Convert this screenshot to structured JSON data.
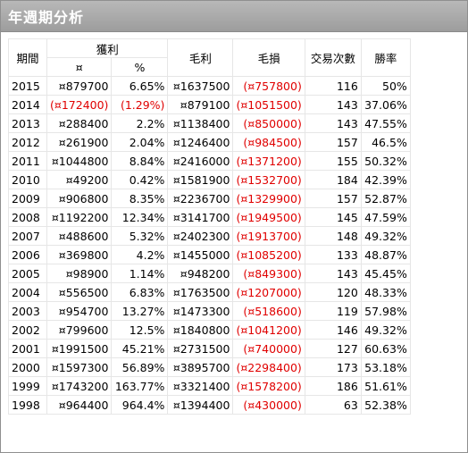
{
  "window": {
    "title": "年週期分析"
  },
  "table": {
    "headers": {
      "period": "期間",
      "profit_group": "獲利",
      "profit_amount": "¤",
      "profit_pct": "%",
      "gross_profit": "毛利",
      "gross_loss": "毛損",
      "trades": "交易次數",
      "win_rate": "勝率"
    },
    "rows": [
      {
        "year": "2015",
        "profit": "¤879700",
        "pct": "6.65%",
        "gross": "¤1637500",
        "loss": "(¤757800)",
        "trades": "116",
        "win": "50%",
        "negative": false
      },
      {
        "year": "2014",
        "profit": "(¤172400)",
        "pct": "(1.29%)",
        "gross": "¤879100",
        "loss": "(¤1051500)",
        "trades": "143",
        "win": "37.06%",
        "negative": true
      },
      {
        "year": "2013",
        "profit": "¤288400",
        "pct": "2.2%",
        "gross": "¤1138400",
        "loss": "(¤850000)",
        "trades": "143",
        "win": "47.55%",
        "negative": false
      },
      {
        "year": "2012",
        "profit": "¤261900",
        "pct": "2.04%",
        "gross": "¤1246400",
        "loss": "(¤984500)",
        "trades": "157",
        "win": "46.5%",
        "negative": false
      },
      {
        "year": "2011",
        "profit": "¤1044800",
        "pct": "8.84%",
        "gross": "¤2416000",
        "loss": "(¤1371200)",
        "trades": "155",
        "win": "50.32%",
        "negative": false
      },
      {
        "year": "2010",
        "profit": "¤49200",
        "pct": "0.42%",
        "gross": "¤1581900",
        "loss": "(¤1532700)",
        "trades": "184",
        "win": "42.39%",
        "negative": false
      },
      {
        "year": "2009",
        "profit": "¤906800",
        "pct": "8.35%",
        "gross": "¤2236700",
        "loss": "(¤1329900)",
        "trades": "157",
        "win": "52.87%",
        "negative": false
      },
      {
        "year": "2008",
        "profit": "¤1192200",
        "pct": "12.34%",
        "gross": "¤3141700",
        "loss": "(¤1949500)",
        "trades": "145",
        "win": "47.59%",
        "negative": false
      },
      {
        "year": "2007",
        "profit": "¤488600",
        "pct": "5.32%",
        "gross": "¤2402300",
        "loss": "(¤1913700)",
        "trades": "148",
        "win": "49.32%",
        "negative": false
      },
      {
        "year": "2006",
        "profit": "¤369800",
        "pct": "4.2%",
        "gross": "¤1455000",
        "loss": "(¤1085200)",
        "trades": "133",
        "win": "48.87%",
        "negative": false
      },
      {
        "year": "2005",
        "profit": "¤98900",
        "pct": "1.14%",
        "gross": "¤948200",
        "loss": "(¤849300)",
        "trades": "143",
        "win": "45.45%",
        "negative": false
      },
      {
        "year": "2004",
        "profit": "¤556500",
        "pct": "6.83%",
        "gross": "¤1763500",
        "loss": "(¤1207000)",
        "trades": "120",
        "win": "48.33%",
        "negative": false
      },
      {
        "year": "2003",
        "profit": "¤954700",
        "pct": "13.27%",
        "gross": "¤1473300",
        "loss": "(¤518600)",
        "trades": "119",
        "win": "57.98%",
        "negative": false
      },
      {
        "year": "2002",
        "profit": "¤799600",
        "pct": "12.5%",
        "gross": "¤1840800",
        "loss": "(¤1041200)",
        "trades": "146",
        "win": "49.32%",
        "negative": false
      },
      {
        "year": "2001",
        "profit": "¤1991500",
        "pct": "45.21%",
        "gross": "¤2731500",
        "loss": "(¤740000)",
        "trades": "127",
        "win": "60.63%",
        "negative": false
      },
      {
        "year": "2000",
        "profit": "¤1597300",
        "pct": "56.89%",
        "gross": "¤3895700",
        "loss": "(¤2298400)",
        "trades": "173",
        "win": "53.18%",
        "negative": false
      },
      {
        "year": "1999",
        "profit": "¤1743200",
        "pct": "163.77%",
        "gross": "¤3321400",
        "loss": "(¤1578200)",
        "trades": "186",
        "win": "51.61%",
        "negative": false
      },
      {
        "year": "1998",
        "profit": "¤964400",
        "pct": "964.4%",
        "gross": "¤1394400",
        "loss": "(¤430000)",
        "trades": "63",
        "win": "52.38%",
        "negative": false
      }
    ]
  },
  "colors": {
    "negative_text": "#e00000",
    "title_bar": "#a8a8a8",
    "title_text": "#ffffff",
    "grid": "#e6e6e6"
  }
}
